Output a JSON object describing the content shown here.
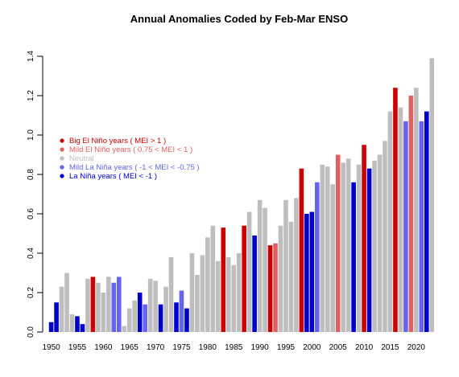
{
  "chart_data": {
    "type": "bar",
    "title": "Annual Anomalies Coded by Feb-Mar ENSO",
    "xlabel": "",
    "ylabel": "",
    "xlim": [
      1950,
      2023
    ],
    "ylim": [
      0,
      1.4
    ],
    "grid": false,
    "legend_placement": "top-left",
    "x_ticks": [
      1950,
      1955,
      1960,
      1965,
      1970,
      1975,
      1980,
      1985,
      1990,
      1995,
      2000,
      2005,
      2010,
      2015,
      2020
    ],
    "y_ticks": [
      "0.0",
      "0.2",
      "0.4",
      "0.6",
      "0.8",
      "1.0",
      "1.2",
      "1.4"
    ],
    "colors": {
      "big_nino": "#cc0000",
      "mild_nino": "#e06060",
      "neutral": "#bebebe",
      "mild_nina": "#6464f0",
      "nina": "#0000cc"
    },
    "legend": [
      {
        "key": "big_nino",
        "label": "Big El Niño years ( MEI > 1 )"
      },
      {
        "key": "mild_nino",
        "label": "Mild El Niño years ( 0.75 < MEI < 1 )"
      },
      {
        "key": "neutral",
        "label": "Neutral"
      },
      {
        "key": "mild_nina",
        "label": "Mild La Niña years ( -1 < MEI < -0.75 )"
      },
      {
        "key": "nina",
        "label": "La Niña years ( MEI < -1 )"
      }
    ],
    "years": [
      1950,
      1951,
      1952,
      1953,
      1954,
      1955,
      1956,
      1957,
      1958,
      1959,
      1960,
      1961,
      1962,
      1963,
      1964,
      1965,
      1966,
      1967,
      1968,
      1969,
      1970,
      1971,
      1972,
      1973,
      1974,
      1975,
      1976,
      1977,
      1978,
      1979,
      1980,
      1981,
      1982,
      1983,
      1984,
      1985,
      1986,
      1987,
      1988,
      1989,
      1990,
      1991,
      1992,
      1993,
      1994,
      1995,
      1996,
      1997,
      1998,
      1999,
      2000,
      2001,
      2002,
      2003,
      2004,
      2005,
      2006,
      2007,
      2008,
      2009,
      2010,
      2011,
      2012,
      2013,
      2014,
      2015,
      2016,
      2017,
      2018,
      2019,
      2020,
      2021,
      2022,
      2023
    ],
    "values": [
      0.05,
      0.15,
      0.23,
      0.3,
      0.09,
      0.08,
      0.04,
      0.27,
      0.28,
      0.25,
      0.2,
      0.28,
      0.25,
      0.28,
      0.03,
      0.12,
      0.16,
      0.2,
      0.14,
      0.27,
      0.26,
      0.14,
      0.23,
      0.38,
      0.15,
      0.21,
      0.12,
      0.4,
      0.29,
      0.39,
      0.48,
      0.54,
      0.36,
      0.53,
      0.38,
      0.34,
      0.4,
      0.54,
      0.61,
      0.49,
      0.67,
      0.63,
      0.44,
      0.45,
      0.54,
      0.67,
      0.56,
      0.68,
      0.83,
      0.6,
      0.61,
      0.76,
      0.85,
      0.84,
      0.75,
      0.9,
      0.86,
      0.88,
      0.76,
      0.85,
      0.95,
      0.83,
      0.87,
      0.9,
      0.97,
      1.12,
      1.24,
      1.14,
      1.07,
      1.2,
      1.24,
      1.07,
      1.12,
      1.39
    ],
    "categories": [
      "nina",
      "nina",
      "neutral",
      "neutral",
      "neutral",
      "nina",
      "nina",
      "neutral",
      "big_nino",
      "neutral",
      "neutral",
      "neutral",
      "mild_nina",
      "mild_nina",
      "neutral",
      "neutral",
      "neutral",
      "nina",
      "mild_nina",
      "neutral",
      "neutral",
      "nina",
      "neutral",
      "neutral",
      "nina",
      "mild_nina",
      "nina",
      "neutral",
      "neutral",
      "neutral",
      "neutral",
      "neutral",
      "neutral",
      "big_nino",
      "neutral",
      "neutral",
      "neutral",
      "big_nino",
      "neutral",
      "nina",
      "neutral",
      "neutral",
      "big_nino",
      "mild_nino",
      "neutral",
      "neutral",
      "neutral",
      "neutral",
      "big_nino",
      "nina",
      "nina",
      "mild_nina",
      "neutral",
      "neutral",
      "neutral",
      "mild_nino",
      "neutral",
      "neutral",
      "nina",
      "neutral",
      "big_nino",
      "nina",
      "neutral",
      "neutral",
      "neutral",
      "neutral",
      "big_nino",
      "neutral",
      "mild_nina",
      "mild_nino",
      "neutral",
      "mild_nina",
      "nina",
      "neutral"
    ]
  }
}
